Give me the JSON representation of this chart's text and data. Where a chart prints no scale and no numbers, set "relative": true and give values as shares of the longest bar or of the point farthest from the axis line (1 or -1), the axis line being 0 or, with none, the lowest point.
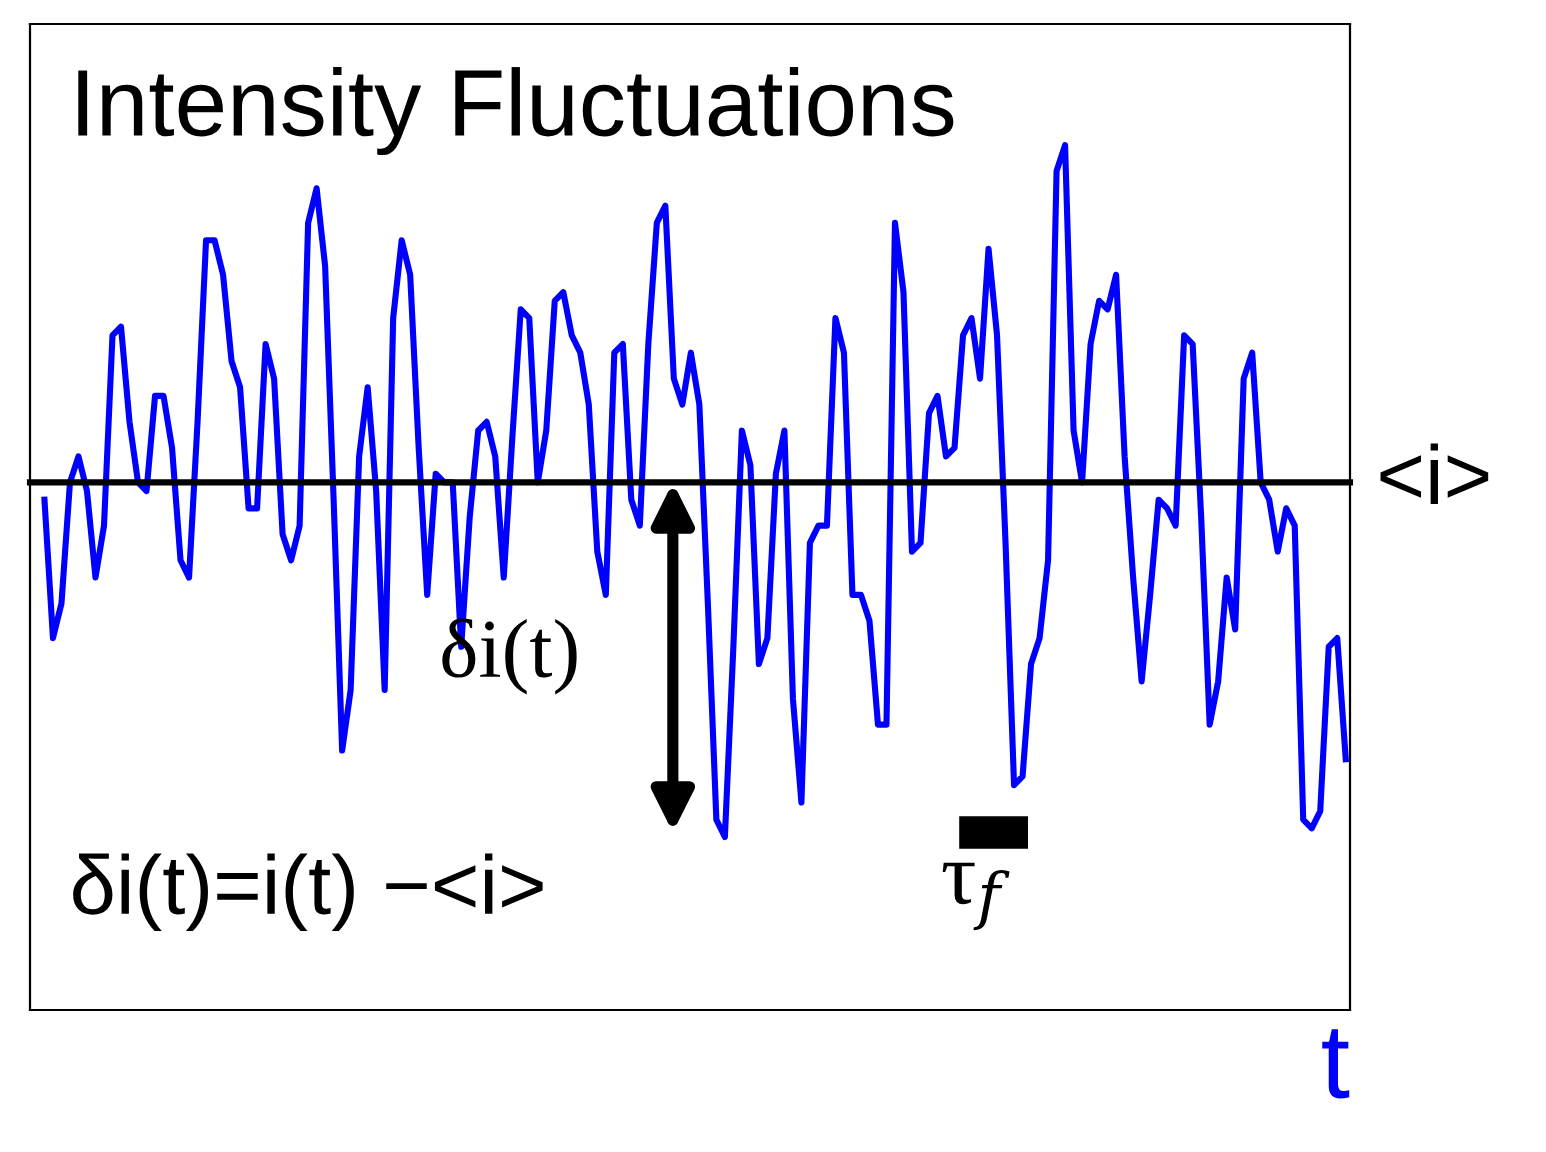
{
  "chart_data": {
    "type": "line",
    "title": "Intensity Fluctuations",
    "xlabel": "t",
    "relative": true,
    "categories": [
      null,
      null,
      null,
      null,
      null,
      null,
      null,
      null,
      null,
      null,
      null,
      null,
      null,
      null,
      null,
      null,
      null,
      null,
      null,
      null,
      null,
      null,
      null,
      null,
      null,
      null,
      null,
      null,
      null,
      null,
      null,
      null,
      null,
      null,
      null,
      null,
      null,
      null,
      null,
      null,
      null,
      null,
      null,
      null,
      null,
      null,
      null,
      null,
      null,
      null,
      null,
      null,
      null,
      null,
      null,
      null,
      null,
      null,
      null,
      null,
      null,
      null,
      null,
      null,
      null,
      null,
      null,
      null,
      null,
      null,
      null,
      null,
      null,
      null,
      null,
      null,
      null,
      null,
      null,
      null,
      null,
      null,
      null,
      null,
      null,
      null,
      null,
      null,
      null,
      null,
      null,
      null,
      null,
      null,
      null,
      null,
      null,
      null,
      null,
      null,
      null,
      null,
      null,
      null,
      null,
      null,
      null,
      null,
      null,
      null,
      null,
      null,
      null,
      null,
      null,
      null,
      null,
      null,
      null,
      null,
      null,
      null,
      null,
      null,
      null,
      null,
      null,
      null,
      null,
      null,
      null,
      null,
      null,
      null,
      null,
      null,
      null,
      null,
      null,
      null,
      null,
      null,
      null,
      null,
      null,
      null,
      null,
      null,
      null,
      null,
      null,
      null,
      null,
      null
    ],
    "series": [
      {
        "color": "#0000ff",
        "values": [
          0.59,
          0.43,
          0.47,
          0.61,
          0.64,
          0.6,
          0.5,
          0.56,
          0.78,
          0.79,
          0.68,
          0.61,
          0.6,
          0.71,
          0.71,
          0.65,
          0.52,
          0.5,
          0.68,
          0.89,
          0.89,
          0.85,
          0.75,
          0.72,
          0.58,
          0.58,
          0.77,
          0.73,
          0.55,
          0.52,
          0.56,
          0.91,
          0.95,
          0.86,
          0.59,
          0.3,
          0.37,
          0.64,
          0.72,
          0.6,
          0.37,
          0.8,
          0.89,
          0.85,
          0.65,
          0.48,
          0.62,
          0.61,
          0.61,
          0.42,
          0.57,
          0.67,
          0.68,
          0.64,
          0.5,
          0.66,
          0.81,
          0.8,
          0.61,
          0.67,
          0.82,
          0.83,
          0.78,
          0.76,
          0.7,
          0.53,
          0.48,
          0.76,
          0.77,
          0.59,
          0.56,
          0.77,
          0.91,
          0.93,
          0.73,
          0.7,
          0.76,
          0.7,
          0.47,
          0.22,
          0.2,
          0.42,
          0.67,
          0.63,
          0.4,
          0.43,
          0.62,
          0.67,
          0.36,
          0.24,
          0.54,
          0.56,
          0.56,
          0.8,
          0.76,
          0.48,
          0.48,
          0.45,
          0.33,
          0.33,
          0.91,
          0.83,
          0.53,
          0.54,
          0.69,
          0.71,
          0.64,
          0.65,
          0.78,
          0.8,
          0.73,
          0.88,
          0.78,
          0.54,
          0.26,
          0.27,
          0.4,
          0.43,
          0.52,
          0.97,
          1.0,
          0.67,
          0.61,
          0.77,
          0.82,
          0.81,
          0.85,
          0.64,
          0.5,
          0.38,
          0.48,
          0.59,
          0.58,
          0.56,
          0.78,
          0.77,
          0.57,
          0.33,
          0.38,
          0.5,
          0.44,
          0.73,
          0.76,
          0.61,
          0.59,
          0.53,
          0.58,
          0.56,
          0.22,
          0.21,
          0.23,
          0.42,
          0.43,
          0.29
        ]
      }
    ],
    "ref_lines": [
      {
        "axis": "y",
        "value": 0.61,
        "label": "<i>",
        "color": "#000000"
      }
    ],
    "annotations": [
      "δi(t)",
      "δi(t)=i(t) −<i>",
      "τ$_{f}$"
    ],
    "legend": false,
    "marker": "none",
    "line_style": "solid"
  }
}
